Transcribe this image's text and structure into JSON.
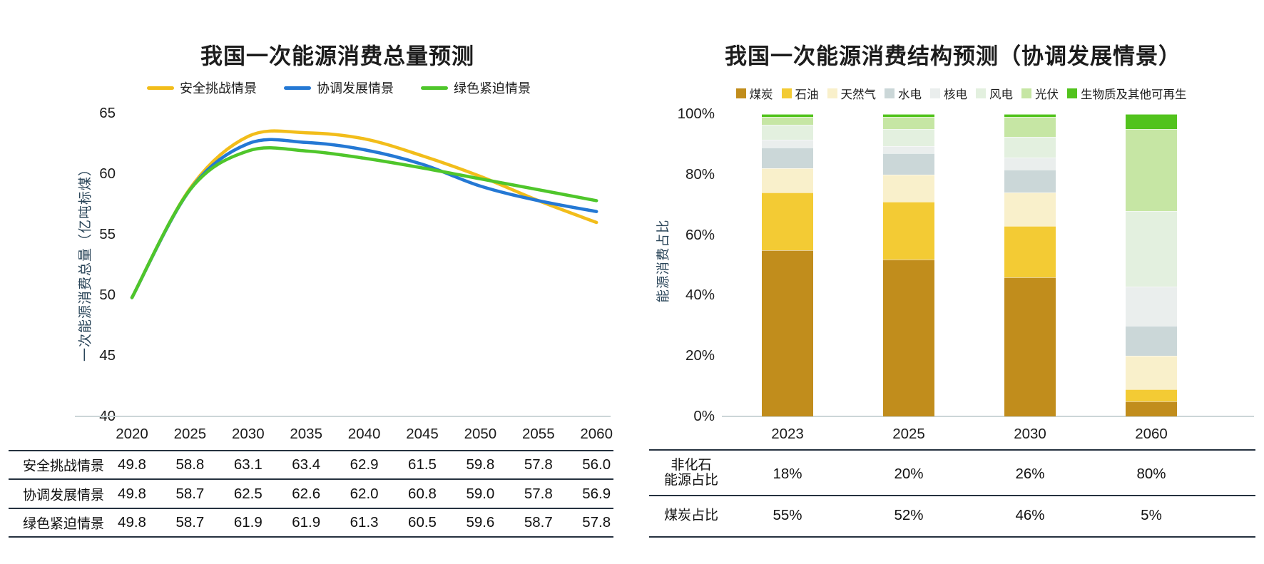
{
  "chart_data": [
    {
      "type": "line",
      "title": "我国一次能源消费总量预测",
      "ylabel": "一次能源消费总量（亿吨标煤）",
      "ylim": [
        40,
        65
      ],
      "y_ticks": [
        65,
        60,
        55,
        50,
        45,
        40
      ],
      "x": [
        "2020",
        "2025",
        "2030",
        "2035",
        "2040",
        "2045",
        "2050",
        "2055",
        "2060"
      ],
      "legend_position": "top",
      "grid": "baseline-only",
      "series": [
        {
          "name": "安全挑战情景",
          "color": "#F2BD1A",
          "values": [
            49.8,
            58.8,
            63.1,
            63.4,
            62.9,
            61.5,
            59.8,
            57.8,
            56.0
          ]
        },
        {
          "name": "协调发展情景",
          "color": "#2478D4",
          "values": [
            49.8,
            58.7,
            62.5,
            62.6,
            62.0,
            60.8,
            59.0,
            57.8,
            56.9
          ]
        },
        {
          "name": "绿色紧迫情景",
          "color": "#4FC62B",
          "values": [
            49.8,
            58.7,
            61.9,
            61.9,
            61.3,
            60.5,
            59.6,
            58.7,
            57.8
          ]
        }
      ]
    },
    {
      "type": "bar",
      "stacked": true,
      "title": "我国一次能源消费结构预测（协调发展情景）",
      "ylabel": "能源消费占比",
      "ylim": [
        0,
        100
      ],
      "y_ticks": [
        "100%",
        "80%",
        "60%",
        "40%",
        "20%",
        "0%"
      ],
      "categories": [
        "2023",
        "2025",
        "2030",
        "2060"
      ],
      "legend_position": "top",
      "grid": "baseline-only",
      "series": [
        {
          "name": "煤炭",
          "color": "#C18D1C",
          "values": [
            55,
            52,
            46,
            5
          ]
        },
        {
          "name": "石油",
          "color": "#F3CB34",
          "values": [
            19,
            19,
            17,
            4
          ]
        },
        {
          "name": "天然气",
          "color": "#F9F0CB",
          "values": [
            8,
            9,
            11,
            11
          ]
        },
        {
          "name": "水电",
          "color": "#CBD7D8",
          "values": [
            7,
            7,
            7.5,
            10
          ]
        },
        {
          "name": "核电",
          "color": "#EAEEED",
          "values": [
            2.5,
            2.5,
            4,
            13
          ]
        },
        {
          "name": "风电",
          "color": "#E3F0DF",
          "values": [
            5,
            5.5,
            7,
            25
          ]
        },
        {
          "name": "光伏",
          "color": "#C6E6A4",
          "values": [
            2.5,
            4,
            6.5,
            27
          ]
        },
        {
          "name": "生物质及其他可再生",
          "color": "#52C31D",
          "values": [
            1,
            1,
            1,
            5
          ]
        }
      ]
    }
  ],
  "left_table": {
    "header": [
      "2020",
      "2025",
      "2030",
      "2035",
      "2040",
      "2045",
      "2050",
      "2055",
      "2060"
    ],
    "rows": [
      {
        "label": "安全挑战情景",
        "values": [
          "49.8",
          "58.8",
          "63.1",
          "63.4",
          "62.9",
          "61.5",
          "59.8",
          "57.8",
          "56.0"
        ]
      },
      {
        "label": "协调发展情景",
        "values": [
          "49.8",
          "58.7",
          "62.5",
          "62.6",
          "62.0",
          "60.8",
          "59.0",
          "57.8",
          "56.9"
        ]
      },
      {
        "label": "绿色紧迫情景",
        "values": [
          "49.8",
          "58.7",
          "61.9",
          "61.9",
          "61.3",
          "60.5",
          "59.6",
          "58.7",
          "57.8"
        ]
      }
    ]
  },
  "right_table": {
    "rows": [
      {
        "label_lines": [
          "非化石",
          "能源占比"
        ],
        "values": [
          "18%",
          "20%",
          "26%",
          "80%"
        ]
      },
      {
        "label_lines": [
          "煤炭占比"
        ],
        "values": [
          "55%",
          "52%",
          "46%",
          "5%"
        ]
      }
    ]
  }
}
